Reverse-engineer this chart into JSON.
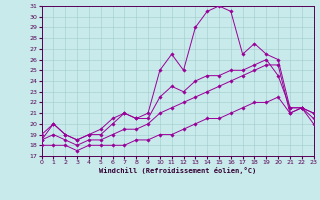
{
  "xlabel": "Windchill (Refroidissement éolien,°C)",
  "xlim": [
    0,
    23
  ],
  "ylim": [
    17,
    31
  ],
  "xticks": [
    0,
    1,
    2,
    3,
    4,
    5,
    6,
    7,
    8,
    9,
    10,
    11,
    12,
    13,
    14,
    15,
    16,
    17,
    18,
    19,
    20,
    21,
    22,
    23
  ],
  "yticks": [
    17,
    18,
    19,
    20,
    21,
    22,
    23,
    24,
    25,
    26,
    27,
    28,
    29,
    30,
    31
  ],
  "background_color": "#c8eaea",
  "grid_color": "#a0cccc",
  "line_color": "#990099",
  "lines": [
    {
      "x": [
        0,
        1,
        2,
        3,
        4,
        5,
        6,
        7,
        8,
        9,
        10,
        11,
        12,
        13,
        14,
        15,
        16,
        17,
        18,
        19,
        20,
        21,
        22,
        23
      ],
      "y": [
        18.0,
        18.0,
        18.0,
        17.5,
        18.0,
        18.0,
        18.0,
        18.0,
        18.5,
        18.5,
        19.0,
        19.0,
        19.5,
        20.0,
        20.5,
        20.5,
        21.0,
        21.5,
        22.0,
        22.0,
        22.5,
        21.0,
        21.5,
        21.0
      ]
    },
    {
      "x": [
        0,
        1,
        2,
        3,
        4,
        5,
        6,
        7,
        8,
        9,
        10,
        11,
        12,
        13,
        14,
        15,
        16,
        17,
        18,
        19,
        20,
        21,
        22,
        23
      ],
      "y": [
        18.5,
        19.0,
        18.5,
        18.0,
        18.5,
        18.5,
        19.0,
        19.5,
        19.5,
        20.0,
        21.0,
        21.5,
        22.0,
        22.5,
        23.0,
        23.5,
        24.0,
        24.5,
        25.0,
        25.5,
        25.5,
        21.0,
        21.5,
        20.5
      ]
    },
    {
      "x": [
        0,
        1,
        2,
        3,
        4,
        5,
        6,
        7,
        8,
        9,
        10,
        11,
        12,
        13,
        14,
        15,
        16,
        17,
        18,
        19,
        20,
        21,
        22,
        23
      ],
      "y": [
        19.0,
        20.0,
        19.0,
        18.5,
        19.0,
        19.0,
        20.0,
        21.0,
        20.5,
        20.5,
        22.5,
        23.5,
        23.0,
        24.0,
        24.5,
        24.5,
        25.0,
        25.0,
        25.5,
        26.0,
        24.5,
        21.5,
        21.5,
        21.0
      ]
    },
    {
      "x": [
        0,
        1,
        2,
        3,
        4,
        5,
        6,
        7,
        8,
        9,
        10,
        11,
        12,
        13,
        14,
        15,
        16,
        17,
        18,
        19,
        20,
        21,
        22,
        23
      ],
      "y": [
        18.5,
        20.0,
        19.0,
        18.5,
        19.0,
        19.5,
        20.5,
        21.0,
        20.5,
        21.0,
        25.0,
        26.5,
        25.0,
        29.0,
        30.5,
        31.0,
        30.5,
        26.5,
        27.5,
        26.5,
        26.0,
        21.5,
        21.5,
        20.0
      ]
    }
  ]
}
